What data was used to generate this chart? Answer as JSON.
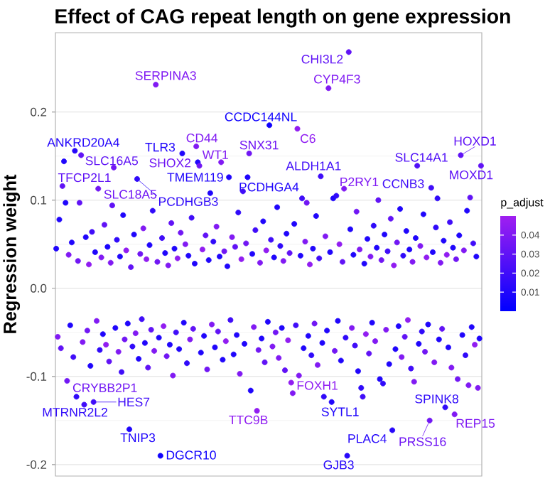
{
  "chart_data": {
    "type": "scatter",
    "title": "Effect of CAG repeat length on gene expression",
    "ylabel": "Regression weight",
    "clabel": "p_adjust",
    "categories": [
      null,
      null,
      null,
      null,
      null,
      null,
      null,
      null,
      null,
      null,
      null,
      null,
      null,
      null,
      null,
      null,
      null,
      null,
      null,
      null,
      null,
      null,
      null,
      null,
      null,
      null,
      null,
      null,
      null,
      null,
      null,
      null,
      null,
      null,
      null,
      null,
      null,
      null,
      null,
      null,
      null,
      null,
      null,
      null,
      null,
      null,
      null,
      null,
      null,
      null,
      null,
      null,
      null,
      null,
      null,
      null,
      null,
      null,
      null,
      null,
      null,
      null,
      null,
      null,
      null,
      null,
      null,
      null,
      null,
      null,
      null,
      null,
      null,
      null,
      null,
      null,
      null,
      null,
      null,
      null,
      null,
      null,
      null,
      null,
      null,
      null,
      null,
      null,
      null,
      null,
      null,
      null,
      null,
      null,
      null,
      null,
      null,
      null,
      null,
      null,
      null,
      null,
      null,
      null,
      null,
      null,
      null,
      null,
      null,
      null,
      null,
      null,
      null,
      null,
      null,
      null,
      null,
      null,
      null,
      null,
      null,
      null,
      null,
      null,
      null,
      null,
      null,
      null,
      null,
      null,
      null,
      null,
      null,
      null,
      null,
      null,
      null,
      null,
      null,
      null,
      null,
      null,
      null,
      null,
      null,
      null,
      null,
      null,
      null,
      null,
      null,
      null,
      null,
      null,
      null,
      null,
      null,
      null,
      null,
      null,
      null,
      null,
      null,
      null,
      null,
      null,
      null,
      null,
      null,
      null,
      null,
      null,
      null,
      null,
      null,
      null,
      null,
      null,
      null,
      null,
      null,
      null,
      null,
      null,
      null,
      null,
      null,
      null,
      null,
      null,
      null,
      null,
      null,
      null,
      null,
      null,
      null,
      null,
      null,
      null,
      null,
      null,
      null,
      null,
      null,
      null,
      null,
      null,
      null,
      null,
      null,
      null,
      null,
      null,
      null,
      null,
      null,
      null,
      null,
      null,
      null,
      null,
      null,
      null,
      null,
      null,
      null,
      null,
      null,
      null,
      null,
      null,
      null,
      null,
      null,
      null,
      null,
      null,
      null,
      null,
      null,
      null,
      null,
      null,
      null,
      null,
      null,
      null,
      null,
      null,
      null,
      null,
      null,
      null,
      null,
      null,
      null,
      null,
      null,
      null,
      null,
      null,
      null,
      null,
      null,
      null,
      null,
      null,
      null,
      null,
      null,
      null,
      null,
      null
    ],
    "values": [
      0.045,
      -0.055,
      0.078,
      -0.068,
      0.116,
      0.144,
      0.097,
      -0.105,
      0.038,
      -0.042,
      0.052,
      -0.078,
      0.156,
      -0.123,
      0.031,
      0.097,
      0.151,
      -0.061,
      -0.132,
      0.058,
      -0.048,
      0.027,
      -0.088,
      0.064,
      -0.129,
      0.041,
      -0.037,
      0.113,
      -0.07,
      0.035,
      -0.052,
      0.072,
      -0.064,
      0.047,
      -0.083,
      0.029,
      0.094,
      0.137,
      -0.045,
      0.055,
      -0.072,
      0.036,
      -0.095,
      0.083,
      -0.058,
      0.043,
      -0.04,
      -0.16,
      0.024,
      -0.066,
      0.061,
      -0.051,
      0.124,
      -0.08,
      0.039,
      -0.035,
      0.068,
      -0.062,
      0.033,
      -0.09,
      0.049,
      -0.047,
      0.088,
      -0.071,
      0.231,
      0.03,
      -0.056,
      -0.19,
      0.057,
      -0.043,
      0.04,
      -0.077,
      0.026,
      -0.064,
      0.074,
      -0.099,
      0.045,
      -0.05,
      0.034,
      -0.069,
      0.063,
      0.153,
      -0.039,
      0.05,
      -0.085,
      0.037,
      -0.058,
      0.08,
      -0.046,
      0.028,
      0.161,
      0.143,
      0.139,
      -0.073,
      0.044,
      -0.054,
      0.06,
      -0.092,
      0.032,
      0.108,
      -0.041,
      0.053,
      -0.067,
      0.07,
      -0.049,
      0.036,
      0.143,
      -0.081,
      0.042,
      -0.06,
      0.025,
      0.126,
      -0.036,
      0.058,
      -0.075,
      0.047,
      -0.053,
      0.086,
      -0.097,
      0.033,
      0.11,
      -0.063,
      0.051,
      0.126,
      0.153,
      -0.116,
      0.039,
      -0.044,
      0.066,
      -0.139,
      -0.07,
      0.029,
      -0.057,
      0.076,
      -0.084,
      0.043,
      -0.038,
      0.185,
      0.055,
      -0.066,
      0.035,
      -0.05,
      0.092,
      -0.079,
      0.048,
      -0.045,
      0.031,
      -0.093,
      0.062,
      -0.059,
      0.04,
      -0.107,
      -0.119,
      0.073,
      -0.042,
      0.181,
      -0.099,
      0.037,
      0.102,
      -0.068,
      0.053,
      0.097,
      -0.054,
      0.027,
      -0.076,
      0.045,
      -0.04,
      0.082,
      -0.087,
      0.034,
      0.127,
      -0.062,
      -0.123,
      0.059,
      -0.048,
      0.227,
      0.041,
      -0.129,
      0.102,
      -0.071,
      0.105,
      -0.037,
      0.05,
      -0.082,
      0.03,
      0.113,
      -0.056,
      -0.19,
      0.268,
      0.067,
      -0.045,
      0.038,
      -0.065,
      0.087,
      -0.094,
      0.044,
      -0.113,
      -0.123,
      0.028,
      -0.052,
      0.056,
      -0.074,
      0.036,
      -0.039,
      0.071,
      -0.06,
      0.046,
      0.1,
      -0.103,
      0.032,
      -0.108,
      0.061,
      -0.047,
      0.042,
      -0.086,
      0.079,
      -0.161,
      0.026,
      -0.069,
      0.052,
      -0.043,
      0.09,
      -0.078,
      0.037,
      -0.055,
      0.065,
      -0.036,
      0.044,
      -0.091,
      0.03,
      -0.106,
      0.057,
      0.139,
      -0.063,
      0.048,
      -0.049,
      0.084,
      -0.072,
      0.035,
      -0.041,
      -0.15,
      0.114,
      0.041,
      -0.084,
      0.069,
      0.102,
      -0.058,
      0.029,
      -0.046,
      0.054,
      -0.135,
      0.038,
      -0.067,
      0.075,
      -0.09,
      0.046,
      -0.143,
      0.033,
      -0.103,
      0.06,
      0.151,
      -0.053,
      0.043,
      -0.076,
      0.088,
      -0.11,
      0.103,
      -0.044,
      0.051,
      -0.064,
      0.036,
      -0.113,
      -0.057,
      0.139
    ],
    "cvalues": [
      0.01,
      0.04,
      0.01,
      0.03,
      0.03,
      0.01,
      0.01,
      0.035,
      0.04,
      0.01,
      0.01,
      0.02,
      0.012,
      0.015,
      0.035,
      0.03,
      0.03,
      0.04,
      0.02,
      0.01,
      0.035,
      0.045,
      0.01,
      0.02,
      0.02,
      0.01,
      0.04,
      0.035,
      0.015,
      0.04,
      0.01,
      0.03,
      0.045,
      0.008,
      0.03,
      0.04,
      0.03,
      0.035,
      0.01,
      0.015,
      0.04,
      0.01,
      0.02,
      0.01,
      0.035,
      0.045,
      0.01,
      0.01,
      0.03,
      0.015,
      0.01,
      0.04,
      0.015,
      0.01,
      0.035,
      0.02,
      0.04,
      0.01,
      0.045,
      0.03,
      0.01,
      0.03,
      0.015,
      0.04,
      0.04,
      0.035,
      0.01,
      0.005,
      0.02,
      0.045,
      0.01,
      0.035,
      0.04,
      0.01,
      0.03,
      0.04,
      0.01,
      0.02,
      0.045,
      0.01,
      0.035,
      0.01,
      0.01,
      0.04,
      0.015,
      0.01,
      0.04,
      0.02,
      0.03,
      0.01,
      0.04,
      0.01,
      0.035,
      0.01,
      0.045,
      0.01,
      0.03,
      0.035,
      0.01,
      0.01,
      0.04,
      0.015,
      0.01,
      0.04,
      0.03,
      0.01,
      0.04,
      0.01,
      0.035,
      0.045,
      0.01,
      0.01,
      0.02,
      0.04,
      0.01,
      0.03,
      0.01,
      0.015,
      0.04,
      0.045,
      0.02,
      0.01,
      0.035,
      0.01,
      0.035,
      0.01,
      0.01,
      0.04,
      0.02,
      0.045,
      0.035,
      0.04,
      0.01,
      0.01,
      0.03,
      0.045,
      0.01,
      0.005,
      0.02,
      0.04,
      0.01,
      0.035,
      0.01,
      0.04,
      0.015,
      0.01,
      0.04,
      0.03,
      0.01,
      0.045,
      0.03,
      0.045,
      0.04,
      0.01,
      0.02,
      0.045,
      0.04,
      0.01,
      0.02,
      0.01,
      0.04,
      0.035,
      0.01,
      0.045,
      0.015,
      0.01,
      0.035,
      0.01,
      0.04,
      0.02,
      0.02,
      0.01,
      0.015,
      0.04,
      0.01,
      0.04,
      0.01,
      0.01,
      0.01,
      0.035,
      0.015,
      0.01,
      0.045,
      0.01,
      0.03,
      0.04,
      0.015,
      0.012,
      0.03,
      0.01,
      0.04,
      0.01,
      0.02,
      0.035,
      0.01,
      0.04,
      0.015,
      0.02,
      0.01,
      0.045,
      0.01,
      0.03,
      0.04,
      0.01,
      0.015,
      0.04,
      0.01,
      0.03,
      0.01,
      0.035,
      0.015,
      0.01,
      0.04,
      0.02,
      0.01,
      0.03,
      0.012,
      0.045,
      0.01,
      0.035,
      0.01,
      0.01,
      0.04,
      0.015,
      0.03,
      0.01,
      0.045,
      0.01,
      0.02,
      0.04,
      0.04,
      0.01,
      0.025,
      0.01,
      0.04,
      0.015,
      0.01,
      0.035,
      0.045,
      0.01,
      0.035,
      0.02,
      0.01,
      0.04,
      0.015,
      0.015,
      0.01,
      0.04,
      0.03,
      0.01,
      0.015,
      0.045,
      0.01,
      0.02,
      0.04,
      0.01,
      0.04,
      0.035,
      0.035,
      0.01,
      0.03,
      0.01,
      0.04,
      0.015,
      0.01,
      0.04,
      0.03,
      0.01,
      0.02,
      0.045,
      0.01,
      0.04,
      0.01,
      0.03
    ],
    "value_labels": [
      null,
      null,
      null,
      null,
      "TFCP2L1",
      null,
      null,
      "CRYBB2P1",
      null,
      null,
      null,
      null,
      "ANKRD20A4",
      "MTRNR2L2",
      null,
      null,
      "SLC16A5",
      null,
      null,
      null,
      null,
      null,
      null,
      null,
      "HES7",
      null,
      null,
      "SLC18A5",
      null,
      null,
      null,
      null,
      null,
      null,
      null,
      null,
      null,
      null,
      null,
      null,
      null,
      null,
      null,
      null,
      null,
      null,
      null,
      "TNIP3",
      null,
      null,
      null,
      null,
      "PCDHGB3",
      null,
      null,
      null,
      null,
      null,
      null,
      null,
      null,
      null,
      null,
      null,
      "SERPINA3",
      null,
      null,
      "DGCR10",
      null,
      null,
      null,
      null,
      null,
      null,
      null,
      null,
      null,
      null,
      null,
      null,
      null,
      "TLR3",
      null,
      null,
      null,
      null,
      null,
      null,
      null,
      null,
      "CD44",
      null,
      "SHOX2",
      null,
      null,
      null,
      null,
      null,
      null,
      null,
      null,
      null,
      null,
      null,
      null,
      null,
      "WT1",
      null,
      null,
      null,
      null,
      "TMEM119",
      null,
      null,
      null,
      null,
      null,
      null,
      null,
      null,
      null,
      null,
      null,
      "PCDHGA4",
      "SNX31",
      null,
      null,
      null,
      null,
      "TTC9B",
      null,
      null,
      null,
      null,
      null,
      null,
      null,
      "CCDC144NL",
      null,
      null,
      null,
      null,
      null,
      null,
      null,
      null,
      null,
      null,
      null,
      null,
      null,
      "FOXH1",
      null,
      null,
      null,
      "C6",
      null,
      null,
      null,
      null,
      null,
      null,
      null,
      null,
      null,
      null,
      null,
      null,
      null,
      null,
      "ALDH1A1",
      null,
      null,
      null,
      null,
      "CYP4F3",
      null,
      "SYTL1",
      null,
      null,
      null,
      null,
      null,
      null,
      null,
      "P2RY1",
      null,
      "GJB3",
      "CHI3L2",
      null,
      null,
      null,
      null,
      null,
      null,
      null,
      null,
      null,
      null,
      null,
      null,
      null,
      null,
      null,
      null,
      null,
      null,
      null,
      null,
      null,
      null,
      null,
      null,
      null,
      null,
      null,
      "PLAC4",
      null,
      null,
      null,
      null,
      null,
      null,
      null,
      null,
      null,
      null,
      null,
      null,
      null,
      null,
      null,
      "SLC14A1",
      null,
      null,
      null,
      null,
      null,
      null,
      null,
      "PRSS16",
      "CCNB3",
      null,
      null,
      null,
      null,
      null,
      null,
      null,
      null,
      "SPINK8",
      null,
      null,
      null,
      null,
      null,
      "REP15",
      null,
      null,
      null,
      "HOXD1",
      null,
      null,
      null,
      null,
      null,
      null,
      null,
      null,
      null,
      null,
      null,
      null,
      "MOXD1"
    ],
    "ylim": [
      -0.213,
      0.29
    ],
    "yticks": [
      -0.2,
      -0.1,
      {
        "value": 0,
        "label": "0.0"
      },
      0.1,
      0.2
    ],
    "clim": [
      0,
      0.05
    ],
    "cticks": [
      0.01,
      0.02,
      0.03,
      0.04
    ],
    "grid": "y",
    "marker": "circle",
    "tick_labels": "y"
  }
}
